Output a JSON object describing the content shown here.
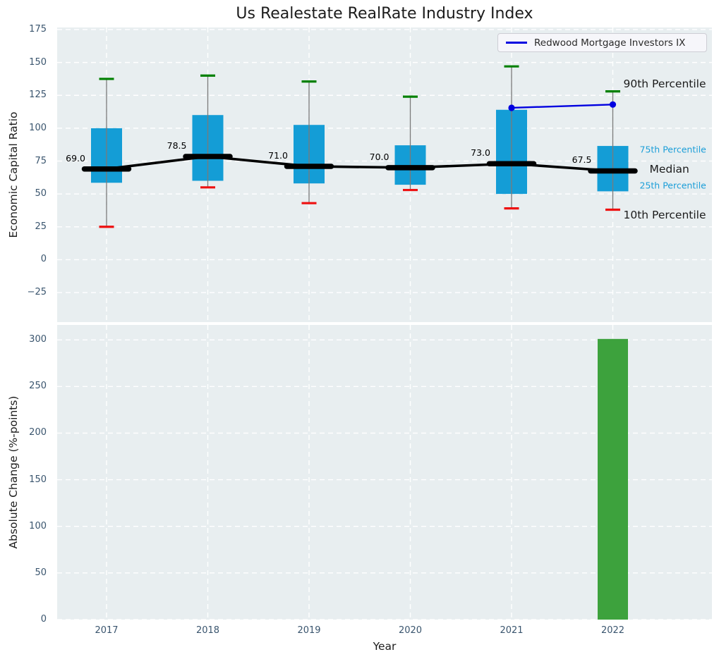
{
  "title": "Us Realestate RealRate Industry Index",
  "legend": {
    "label": "Redwood Mortgage Investors IX"
  },
  "colors": {
    "panel_background": "#e8eef0",
    "grid": "#ffffff",
    "tick_label": "#3a556e",
    "text": "#1c1c1c",
    "box_fill": "#149dd6",
    "whisker": "#7a7a7a",
    "p90_cap": "#008000",
    "p10_cap": "#ee1111",
    "median": "#000000",
    "trend_line": "#000000",
    "series_blue": "#0000e0",
    "bar_green": "#3da23d",
    "percentile_minor": "#1b9ed8",
    "legend_bg": "#f6f6fa",
    "legend_border": "#cdcdd4"
  },
  "chart_data": [
    {
      "type": "boxplot",
      "title": "Us Realestate RealRate Industry Index",
      "ylabel": "Economic Capital Ratio",
      "ylim": [
        -47.5,
        176.6
      ],
      "yticks": [
        175,
        150,
        125,
        100,
        75,
        50,
        25,
        0,
        -25
      ],
      "categories": [
        "2017",
        "2018",
        "2019",
        "2020",
        "2021",
        "2022"
      ],
      "grid": "white dashed, on",
      "legend_position": "upper right",
      "box": {
        "p10": [
          25,
          55,
          43,
          53,
          39,
          38
        ],
        "q1": [
          58.5,
          60,
          58,
          57,
          50,
          52
        ],
        "median": [
          69.0,
          78.5,
          71.0,
          70.0,
          73.0,
          67.5
        ],
        "q3": [
          100,
          110,
          102.5,
          87,
          114,
          86.5
        ],
        "p90": [
          137.5,
          140,
          135.5,
          124,
          147,
          128
        ]
      },
      "median_labels": [
        "69.0",
        "78.5",
        "71.0",
        "70.0",
        "73.0",
        "67.5"
      ],
      "series": [
        {
          "name": "Redwood Mortgage Investors IX",
          "x": [
            "2021",
            "2022"
          ],
          "values": [
            115.5,
            118
          ]
        }
      ],
      "annotations": [
        {
          "text": "90th Percentile",
          "value": 133.5,
          "style": "major",
          "dx": 15
        },
        {
          "text": "75th Percentile",
          "value": 84,
          "style": "minor",
          "dx": 38
        },
        {
          "text": "Median",
          "value": 68.8,
          "style": "major",
          "dx": 52
        },
        {
          "text": "25th Percentile",
          "value": 56.5,
          "style": "minor",
          "dx": 38
        },
        {
          "text": "10th Percentile",
          "value": 34,
          "style": "major",
          "dx": 15
        }
      ]
    },
    {
      "type": "bar",
      "ylabel": "Absolute Change (%-points)",
      "xlabel": "Year",
      "ylim": [
        0,
        316
      ],
      "yticks": [
        0,
        50,
        100,
        150,
        200,
        250,
        300
      ],
      "categories": [
        "2017",
        "2018",
        "2019",
        "2020",
        "2021",
        "2022"
      ],
      "values": [
        null,
        null,
        null,
        null,
        null,
        301
      ]
    }
  ]
}
